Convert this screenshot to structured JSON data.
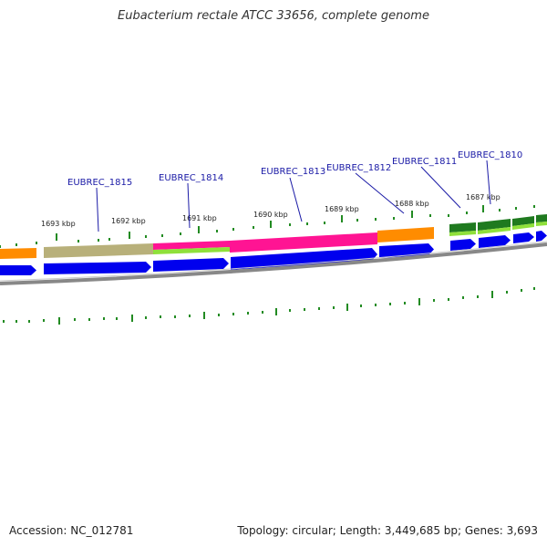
{
  "title": "Eubacterium rectale ATCC 33656, complete genome",
  "footer": {
    "accession": "Accession: NC_012781",
    "summary": "Topology: circular; Length: 3,449,685 bp; Genes: 3,693"
  },
  "colors": {
    "cds": "#0000ee",
    "orange": "#ff8c00",
    "khaki": "#b8b07a",
    "pink": "#ff1493",
    "lime": "#8fe03a",
    "darkgreen": "#1f7a1f",
    "tick": "#228b22",
    "backbone": "#888888",
    "label": "#1a1aa6"
  },
  "kbp_labels": [
    "1693 kbp",
    "1692 kbp",
    "1691 kbp",
    "1690 kbp",
    "1689 kbp",
    "1688 kbp",
    "1687 kbp"
  ],
  "gene_labels": [
    "EUBREC_1815",
    "EUBREC_1814",
    "EUBREC_1813",
    "EUBREC_1812",
    "EUBREC_1811",
    "EUBREC_1810"
  ]
}
